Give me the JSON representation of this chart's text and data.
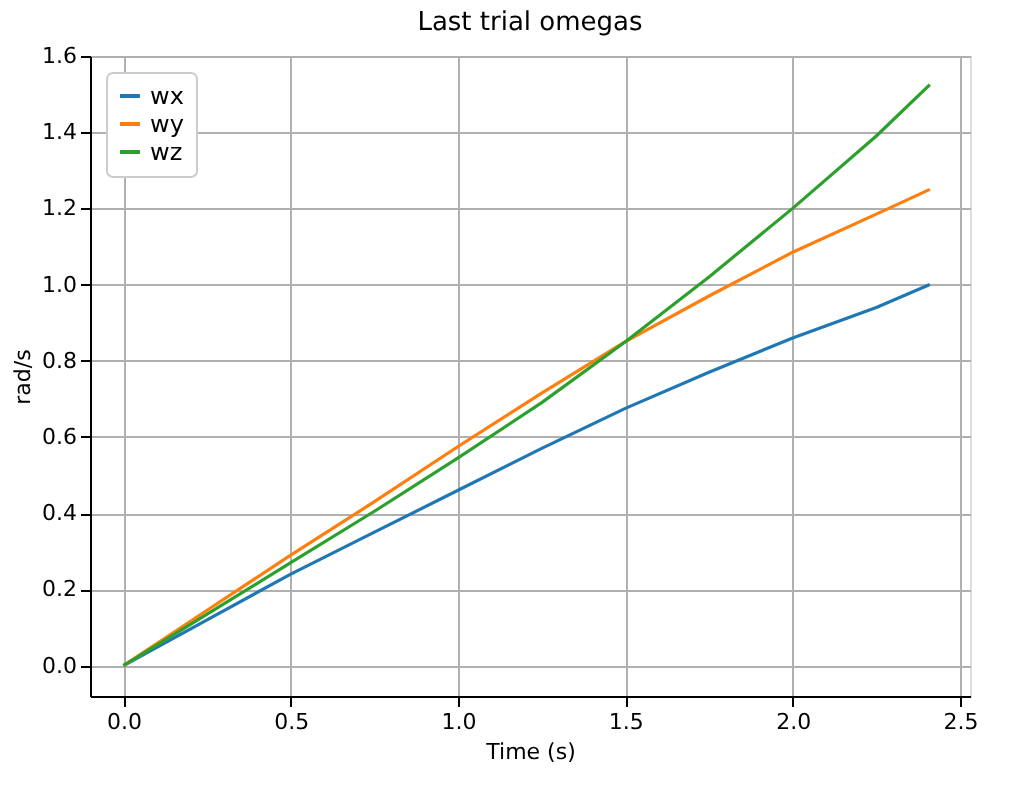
{
  "chart_data": {
    "type": "line",
    "title": "Last trial omegas",
    "xlabel": "Time (s)",
    "ylabel": "rad/s",
    "x": [
      0,
      0.25,
      0.5,
      0.75,
      1.0,
      1.25,
      1.5,
      1.75,
      2.0,
      2.25,
      2.41
    ],
    "series": [
      {
        "name": "wx",
        "color": "#1f77b4",
        "values": [
          0,
          0.12,
          0.24,
          0.35,
          0.46,
          0.57,
          0.675,
          0.77,
          0.86,
          0.94,
          1.0
        ]
      },
      {
        "name": "wy",
        "color": "#ff7f0e",
        "values": [
          0,
          0.145,
          0.29,
          0.43,
          0.575,
          0.715,
          0.85,
          0.97,
          1.085,
          1.185,
          1.25
        ]
      },
      {
        "name": "wz",
        "color": "#2ca02c",
        "values": [
          0,
          0.135,
          0.27,
          0.405,
          0.545,
          0.69,
          0.85,
          1.02,
          1.2,
          1.39,
          1.525
        ]
      }
    ],
    "xlim": [
      -0.1,
      2.53
    ],
    "ylim": [
      -0.08,
      1.6
    ],
    "xticks": [
      {
        "value": 0,
        "label": "0.0"
      },
      0.5,
      {
        "value": 1,
        "label": "1.0"
      },
      1.5,
      {
        "value": 2,
        "label": "2.0"
      },
      2.5
    ],
    "yticks": [
      {
        "value": 0,
        "label": "0.0"
      },
      0.2,
      0.4,
      0.6,
      0.8,
      {
        "value": 1,
        "label": "1.0"
      },
      1.2,
      1.4,
      1.6
    ],
    "grid": true,
    "legend": "top left",
    "marker": "none",
    "line_style": "solid"
  }
}
